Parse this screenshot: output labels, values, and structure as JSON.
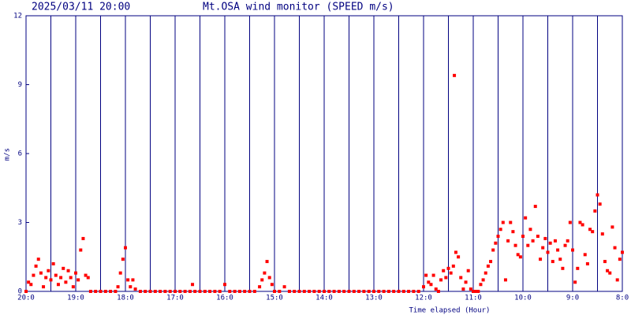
{
  "chart_data": {
    "type": "scatter",
    "title": "2025/03/11 20:00",
    "subtitle": "Mt.OSA wind monitor (SPEED m/s)",
    "xlabel": "Time elapsed (Hour)",
    "ylabel": "m/s",
    "color": "#ff0000",
    "xlim": [
      0,
      12
    ],
    "ylim": [
      0,
      12
    ],
    "yticks": [
      0,
      3,
      6,
      9,
      12
    ],
    "xticks": [
      {
        "value": 0,
        "label": "20:0"
      },
      {
        "value": 1,
        "label": "19:0"
      },
      {
        "value": 2,
        "label": "18:0"
      },
      {
        "value": 3,
        "label": "17:0"
      },
      {
        "value": 4,
        "label": "16:0"
      },
      {
        "value": 5,
        "label": "15:0"
      },
      {
        "value": 6,
        "label": "14:0"
      },
      {
        "value": 7,
        "label": "13:0"
      },
      {
        "value": 8,
        "label": "12:0"
      },
      {
        "value": 9,
        "label": "11:0"
      },
      {
        "value": 10,
        "label": "10:0"
      },
      {
        "value": 11,
        "label": "9:0"
      },
      {
        "value": 12,
        "label": "8:0"
      }
    ],
    "xgrid": [
      0.5,
      1.5,
      2.5,
      3.5,
      4.5,
      5.5,
      6.5,
      7.5,
      8.5,
      9.5,
      10.5,
      11.5
    ],
    "x": [
      0,
      0.05,
      0.1,
      0.15,
      0.2,
      0.25,
      0.3,
      0.35,
      0.4,
      0.45,
      0.5,
      0.55,
      0.6,
      0.65,
      0.7,
      0.75,
      0.8,
      0.85,
      0.9,
      0.95,
      1,
      1.05,
      1.1,
      1.15,
      1.2,
      1.25,
      1.3,
      1.4,
      1.5,
      1.6,
      1.7,
      1.8,
      1.85,
      1.9,
      1.95,
      2,
      2.05,
      2.1,
      2.15,
      2.2,
      2.3,
      2.4,
      2.5,
      2.6,
      2.7,
      2.8,
      2.9,
      3,
      3.1,
      3.2,
      3.3,
      3.35,
      3.4,
      3.5,
      3.6,
      3.7,
      3.8,
      3.9,
      4,
      4.1,
      4.2,
      4.3,
      4.4,
      4.5,
      4.6,
      4.7,
      4.75,
      4.8,
      4.85,
      4.9,
      4.95,
      5,
      5.1,
      5.2,
      5.3,
      5.4,
      5.5,
      5.6,
      5.7,
      5.8,
      5.9,
      6,
      6.1,
      6.2,
      6.3,
      6.4,
      6.5,
      6.6,
      6.7,
      6.8,
      6.9,
      7,
      7.1,
      7.2,
      7.3,
      7.4,
      7.5,
      7.6,
      7.7,
      7.8,
      7.9,
      8,
      8.05,
      8.1,
      8.15,
      8.2,
      8.25,
      8.3,
      8.35,
      8.4,
      8.45,
      8.5,
      8.55,
      8.6,
      8.62,
      8.65,
      8.7,
      8.75,
      8.8,
      8.85,
      8.9,
      8.95,
      9,
      9.05,
      9.1,
      9.15,
      9.2,
      9.25,
      9.3,
      9.35,
      9.4,
      9.45,
      9.5,
      9.55,
      9.6,
      9.65,
      9.7,
      9.75,
      9.8,
      9.85,
      9.9,
      9.95,
      10,
      10.05,
      10.1,
      10.15,
      10.2,
      10.25,
      10.3,
      10.35,
      10.4,
      10.45,
      10.5,
      10.55,
      10.6,
      10.65,
      10.7,
      10.75,
      10.8,
      10.85,
      10.9,
      10.95,
      11,
      11.05,
      11.1,
      11.15,
      11.2,
      11.25,
      11.3,
      11.35,
      11.4,
      11.45,
      11.5,
      11.55,
      11.6,
      11.65,
      11.7,
      11.75,
      11.8,
      11.85,
      11.9,
      11.95,
      12
    ],
    "values": [
      0,
      0.4,
      0.3,
      0.7,
      1.1,
      1.4,
      0.8,
      0.2,
      0.6,
      0.9,
      0.5,
      1.2,
      0.7,
      0.3,
      0.6,
      1,
      0.4,
      0.9,
      0.6,
      0.2,
      0.8,
      0.5,
      1.8,
      2.3,
      0.7,
      0.6,
      0,
      0,
      0,
      0,
      0,
      0,
      0.2,
      0.8,
      1.4,
      1.9,
      0.5,
      0.2,
      0.5,
      0.1,
      0,
      0,
      0,
      0,
      0,
      0,
      0,
      0,
      0,
      0,
      0,
      0.3,
      0,
      0,
      0,
      0,
      0,
      0,
      0.3,
      0,
      0,
      0,
      0,
      0,
      0,
      0.2,
      0.5,
      0.8,
      1.3,
      0.6,
      0.3,
      0,
      0,
      0.2,
      0,
      0,
      0,
      0,
      0,
      0,
      0,
      0,
      0,
      0,
      0,
      0,
      0,
      0,
      0,
      0,
      0,
      0,
      0,
      0,
      0,
      0,
      0,
      0,
      0,
      0,
      0,
      0.2,
      0.7,
      0.4,
      0.3,
      0.7,
      0.1,
      0,
      0.5,
      0.9,
      0.6,
      1,
      0.8,
      1.1,
      9.4,
      1.7,
      1.5,
      0.6,
      0.1,
      0.4,
      0.9,
      0.1,
      0,
      0,
      0,
      0.3,
      0.5,
      0.8,
      1.1,
      1.3,
      1.8,
      2.1,
      2.4,
      2.7,
      3,
      0.5,
      2.2,
      3,
      2.6,
      2,
      1.6,
      1.5,
      2.4,
      3.2,
      2,
      2.7,
      2.2,
      3.7,
      2.4,
      1.4,
      1.9,
      2.3,
      1.7,
      2.1,
      1.3,
      2.2,
      1.8,
      1.4,
      1,
      2,
      2.2,
      3,
      1.8,
      0.4,
      1,
      3,
      2.9,
      1.6,
      1.2,
      2.7,
      2.6,
      3.5,
      4.2,
      3.8,
      2.5,
      1.3,
      0.9,
      0.8,
      2.8,
      1.9,
      0.5,
      1.4,
      1.7
    ]
  }
}
